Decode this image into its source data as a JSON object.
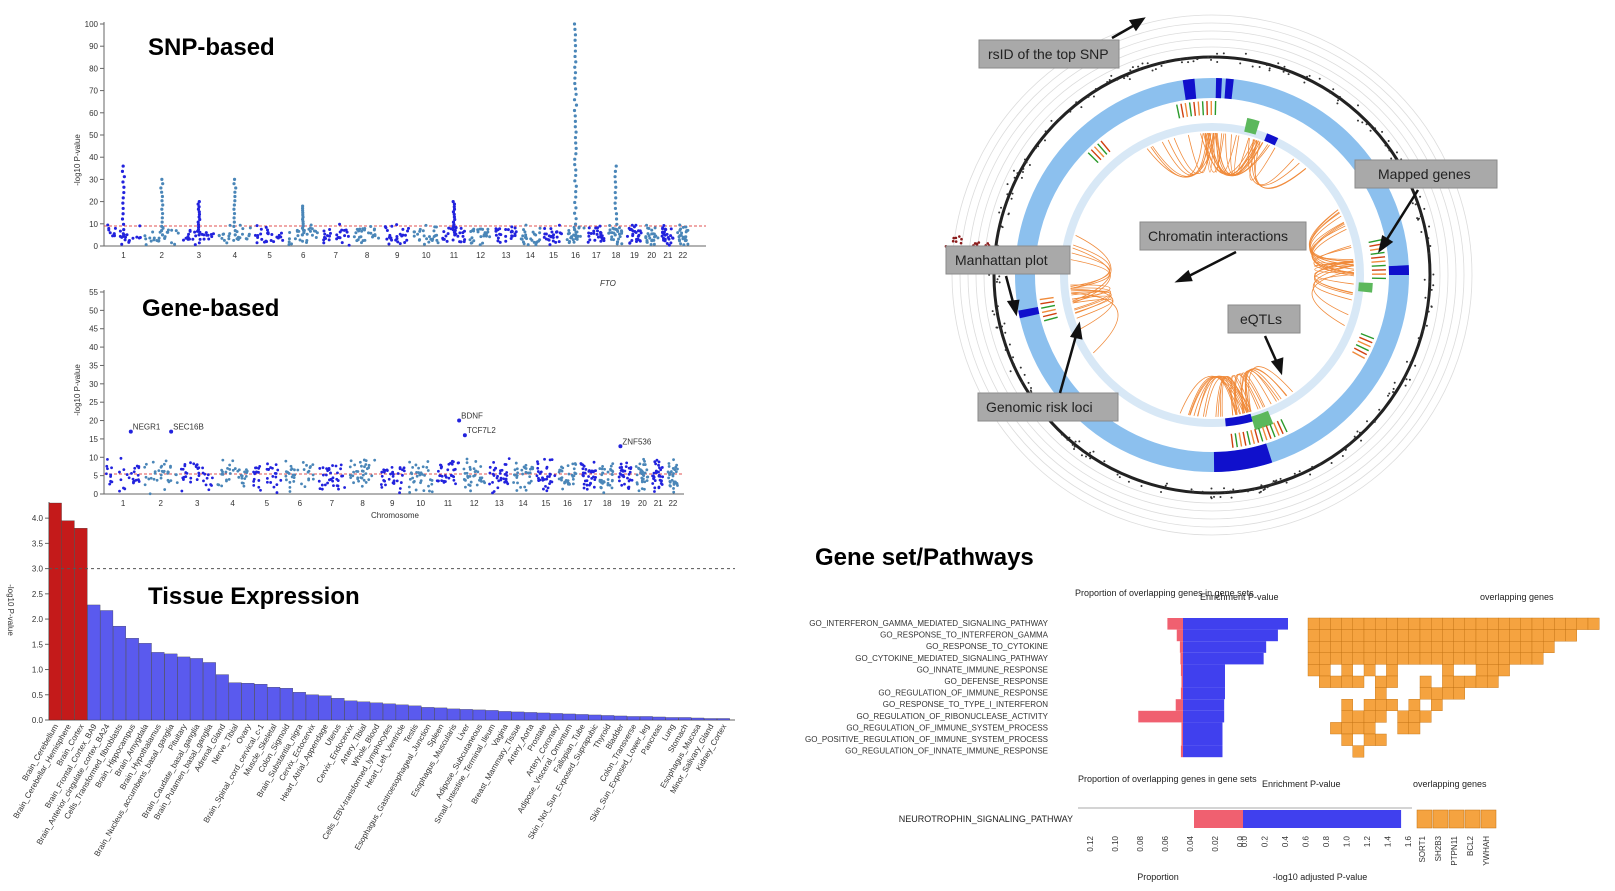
{
  "colors": {
    "snp_dark": "#2222dd",
    "snp_light": "#4a86b8",
    "sig_line": "#e05050",
    "bar_red": "#c41a1a",
    "bar_blue": "#5a5aee",
    "enrich_blue": "#4040ee",
    "prop_red": "#f06070",
    "overlap_orange": "#f5a340",
    "circos_ring": "#8cc0ee",
    "chromatin": "#f08a3a",
    "eqtl": "#5cb85c",
    "callout_bg": "#a9a9a9"
  },
  "chart_data": [
    {
      "type": "scatter",
      "name": "snp_manhattan",
      "title": "SNP-based",
      "ylabel": "-log10 P-value",
      "ylim": [
        0,
        100
      ],
      "yticks": [
        "0",
        "10",
        "20",
        "30",
        "40",
        "50",
        "60",
        "70",
        "80",
        "90",
        "100"
      ],
      "chromosomes": [
        "1",
        "2",
        "3",
        "4",
        "5",
        "6",
        "7",
        "8",
        "9",
        "10",
        "11",
        "12",
        "13",
        "14",
        "15",
        "16",
        "17",
        "18",
        "19",
        "20",
        "21",
        "22"
      ],
      "peaks": [
        {
          "chr": "1",
          "value": 36
        },
        {
          "chr": "2",
          "value": 30
        },
        {
          "chr": "3",
          "value": 20
        },
        {
          "chr": "4",
          "value": 30
        },
        {
          "chr": "6",
          "value": 18
        },
        {
          "chr": "11",
          "value": 20
        },
        {
          "chr": "16",
          "value": 100
        },
        {
          "chr": "18",
          "value": 36
        }
      ]
    },
    {
      "type": "scatter",
      "name": "gene_manhattan",
      "title": "Gene-based",
      "ylabel": "-log10 P-value",
      "xlabel": "Chromosome",
      "ylim": [
        0,
        55
      ],
      "yticks": [
        "0",
        "5",
        "10",
        "15",
        "20",
        "25",
        "30",
        "35",
        "40",
        "45",
        "50",
        "55"
      ],
      "chromosomes": [
        "1",
        "2",
        "3",
        "4",
        "5",
        "6",
        "7",
        "8",
        "9",
        "10",
        "11",
        "12",
        "13",
        "14",
        "15",
        "16",
        "17",
        "18",
        "19",
        "20",
        "21",
        "22"
      ],
      "top_gene": "FTO",
      "labels": [
        {
          "text": "BDNF",
          "value": 20
        },
        {
          "text": "TCF7L2",
          "value": 16
        },
        {
          "text": "SEC16B",
          "value": 17
        },
        {
          "text": "NEGR1",
          "value": 17
        },
        {
          "text": "ZNF536",
          "value": 13
        }
      ]
    },
    {
      "type": "bar",
      "name": "tissue_expression",
      "title": "Tissue Expression",
      "ylabel": "-log10 P-value",
      "ylim": [
        0,
        4.3
      ],
      "yticks": [
        "0.0",
        "0.5",
        "1.0",
        "1.5",
        "2.0",
        "2.5",
        "3.0",
        "3.5",
        "4.0"
      ],
      "threshold": 3.0,
      "categories": [
        "Brain_Cerebellum",
        "Brain_Cerebellar_Hemisphere",
        "Brain_Cortex",
        "Brain_Frontal_Cortex_BA9",
        "Brain_Anterior_cingulate_cortex_BA24",
        "Cells_Transformed_fibroblasts",
        "Brain_Hippocampus",
        "Brain_Amygdala",
        "Brain_Hypothalamus",
        "Brain_Nucleus_accumbens_basal_ganglia",
        "Pituitary",
        "Brain_Caudate_basal_ganglia",
        "Brain_Putamen_basal_ganglia",
        "Adrenal_Gland",
        "Nerve_Tibial",
        "Ovary",
        "Brain_Spinal_cord_cervical_c-1",
        "Muscle_Skeletal",
        "Colon_Sigmoid",
        "Brain_Substantia_nigra",
        "Cervix_Ectocervix",
        "Heart_Atrial_Appendage",
        "Uterus",
        "Cervix_Endocervix",
        "Artery_Tibial",
        "Whole_Blood",
        "Cells_EBV-transformed_lymphocytes",
        "Heart_Left_Ventricle",
        "Testis",
        "Esophagus_Gastroesophageal_Junction",
        "Spleen",
        "Esophagus_Muscularis",
        "Liver",
        "Adipose_Subcutaneous",
        "Small_Intestine_Terminal_Ileum",
        "Vagina",
        "Breast_Mammary_Tissue",
        "Artery_Aorta",
        "Prostate",
        "Artery_Coronary",
        "Adipose_Visceral_Omentum",
        "Fallopian_Tube",
        "Skin_Not_Sun_Exposed_Suprapubic",
        "Thyroid",
        "Bladder",
        "Colon_Transverse",
        "Skin_Sun_Exposed_Lower_leg",
        "Pancreas",
        "Lung",
        "Stomach",
        "Esophagus_Mucosa",
        "Minor_Salivary_Gland",
        "Kidney_Cortex"
      ],
      "values": [
        4.3,
        3.95,
        3.8,
        2.28,
        2.17,
        1.86,
        1.62,
        1.52,
        1.34,
        1.31,
        1.25,
        1.22,
        1.14,
        0.9,
        0.74,
        0.73,
        0.71,
        0.65,
        0.63,
        0.55,
        0.5,
        0.48,
        0.43,
        0.38,
        0.36,
        0.34,
        0.32,
        0.3,
        0.28,
        0.25,
        0.24,
        0.22,
        0.21,
        0.2,
        0.19,
        0.17,
        0.16,
        0.15,
        0.14,
        0.13,
        0.12,
        0.11,
        0.1,
        0.09,
        0.08,
        0.07,
        0.07,
        0.06,
        0.05,
        0.05,
        0.04,
        0.03,
        0.03
      ],
      "significant_count": 3
    },
    {
      "type": "bar",
      "name": "gene_set_pathways",
      "title": "Gene set/Pathways",
      "header_proportion": "Proportion of overlapping genes in gene sets",
      "header_enrichment": "Enrichment P-value",
      "header_overlap": "overlapping genes",
      "pathways": [
        "GO_INTERFERON_GAMMA_MEDIATED_SIGNALING_PATHWAY",
        "GO_RESPONSE_TO_INTERFERON_GAMMA",
        "GO_RESPONSE_TO_CYTOKINE",
        "GO_CYTOKINE_MEDIATED_SIGNALING_PATHWAY",
        "GO_INNATE_IMMUNE_RESPONSE",
        "GO_DEFENSE_RESPONSE",
        "GO_REGULATION_OF_IMMUNE_RESPONSE",
        "GO_RESPONSE_TO_TYPE_I_INTERFERON",
        "GO_REGULATION_OF_RIBONUCLEASE_ACTIVITY",
        "GO_REGULATION_OF_IMMUNE_SYSTEM_PROCESS",
        "GO_POSITIVE_REGULATION_OF_IMMUNE_SYSTEM_PROCESS",
        "GO_REGULATION_OF_INNATE_IMMUNE_RESPONSE"
      ],
      "proportion": [
        0.03,
        0.012,
        0.006,
        0.005,
        0.004,
        0.003,
        0.004,
        0.014,
        0.086,
        0.003,
        0.003,
        0.004
      ],
      "enrichment": [
        12.5,
        11.3,
        9.9,
        9.6,
        5.0,
        5.0,
        5.0,
        4.9,
        4.9,
        4.7,
        4.7,
        4.7
      ],
      "enrichment_max": 13
    },
    {
      "type": "bar",
      "name": "neurotrophin_pathway",
      "pathway": "NEUROTROPHIN_SIGNALING_PATHWAY",
      "proportion": 0.035,
      "proportion_ticks": [
        "0.12",
        "0.10",
        "0.08",
        "0.06",
        "0.04",
        "0.02",
        "0.0"
      ],
      "proportion_xlabel": "Proportion",
      "enrichment": 1.55,
      "enrichment_ticks": [
        "0.0",
        "0.2",
        "0.4",
        "0.6",
        "0.8",
        "1.0",
        "1.2",
        "1.4",
        "1.6"
      ],
      "enrichment_xlabel": "-log10 adjusted P-value",
      "genes": [
        "SORT1",
        "SH2B3",
        "PTPN11",
        "BCL2",
        "YWHAH"
      ],
      "legend_proportion": "Proportion of overlapping genes in gene sets",
      "legend_enrichment": "Enrichment P-value",
      "legend_overlap": "overlapping genes"
    }
  ],
  "circos": {
    "callouts": {
      "rsid": "rsID of the top SNP",
      "mapped": "Mapped genes",
      "chromatin": "Chromatin interactions",
      "manhattan": "Manhattan plot",
      "eqtls": "eQTLs",
      "risk": "Genomic risk loci"
    }
  }
}
